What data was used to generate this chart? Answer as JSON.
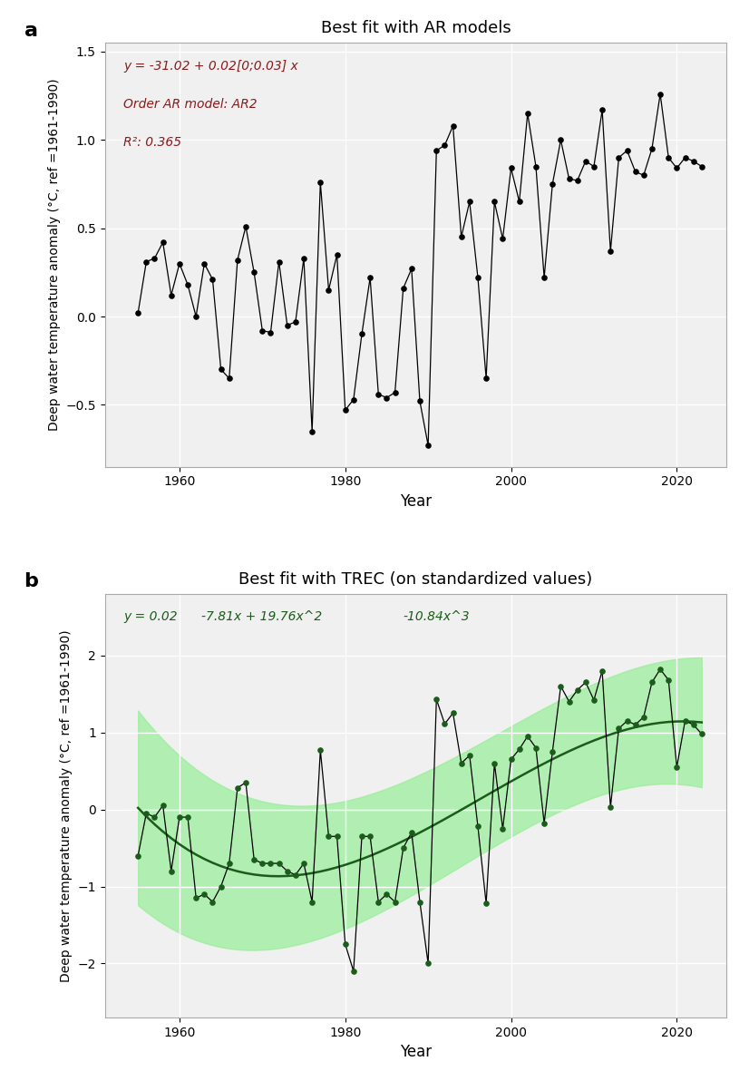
{
  "title_a": "Best fit with AR models",
  "title_b": "Best fit with TREC (on standardized values)",
  "xlabel": "Year",
  "ylabel": "Deep water temperature anomaly (°C, ref =1961-1990)",
  "label_a": "a",
  "label_b": "b",
  "years": [
    1955,
    1956,
    1957,
    1958,
    1959,
    1960,
    1961,
    1962,
    1963,
    1964,
    1965,
    1966,
    1967,
    1968,
    1969,
    1970,
    1971,
    1972,
    1973,
    1974,
    1975,
    1976,
    1977,
    1978,
    1979,
    1980,
    1981,
    1982,
    1983,
    1984,
    1985,
    1986,
    1987,
    1988,
    1989,
    1990,
    1991,
    1992,
    1993,
    1994,
    1995,
    1996,
    1997,
    1998,
    1999,
    2000,
    2001,
    2002,
    2003,
    2004,
    2005,
    2006,
    2007,
    2008,
    2009,
    2010,
    2011,
    2012,
    2013,
    2014,
    2015,
    2016,
    2017,
    2018,
    2019,
    2020,
    2021,
    2022,
    2023
  ],
  "values_a": [
    0.02,
    0.31,
    0.33,
    0.42,
    0.12,
    0.3,
    0.18,
    0.0,
    0.3,
    0.21,
    -0.3,
    -0.35,
    0.32,
    0.51,
    0.25,
    -0.08,
    -0.09,
    0.31,
    -0.05,
    -0.03,
    0.33,
    -0.65,
    0.76,
    0.15,
    0.35,
    -0.53,
    -0.47,
    -0.1,
    0.22,
    -0.44,
    -0.46,
    -0.43,
    0.16,
    0.27,
    -0.48,
    -0.73,
    0.94,
    0.97,
    1.08,
    0.45,
    0.65,
    0.22,
    -0.35,
    0.65,
    0.44,
    0.84,
    0.65,
    1.15,
    0.85,
    0.22,
    0.75,
    1.0,
    0.78,
    0.77,
    0.88,
    0.85,
    1.17,
    0.37,
    0.9,
    0.94,
    0.82,
    0.8,
    0.95,
    1.26,
    0.9,
    0.84,
    0.9,
    0.88,
    0.85
  ],
  "values_b": [
    -0.6,
    -0.05,
    -0.1,
    0.05,
    -0.8,
    -0.1,
    -0.1,
    -1.15,
    -1.1,
    -1.2,
    -1.0,
    -0.7,
    0.28,
    0.35,
    -0.65,
    -0.7,
    -0.7,
    -0.7,
    -0.8,
    -0.85,
    -0.7,
    -1.2,
    0.77,
    -0.35,
    -0.35,
    -1.75,
    -2.1,
    -0.35,
    -0.35,
    -1.2,
    -1.1,
    -1.2,
    -0.5,
    -0.3,
    -1.2,
    -2.0,
    1.43,
    1.11,
    1.25,
    0.6,
    0.7,
    -0.22,
    -1.22,
    0.6,
    -0.25,
    0.65,
    0.78,
    0.95,
    0.8,
    -0.18,
    0.75,
    1.6,
    1.4,
    1.55,
    1.65,
    1.42,
    1.8,
    0.03,
    1.05,
    1.15,
    1.1,
    1.2,
    1.65,
    1.82,
    1.68,
    0.55,
    1.15,
    1.1,
    0.98
  ],
  "ar_intercept": -31.02,
  "ar_slope": 0.02,
  "ar_text": "y = -31.02 + 0.02[0;0.03] x",
  "ar_order_text": "Order AR model: AR2",
  "ar_r2_text": "R²: 0.365",
  "trec_c0": 0.02,
  "trec_c1": -7.81,
  "trec_c2": 19.76,
  "trec_c3": -10.84,
  "red_color": "#8B1A1A",
  "red_fill": "#F4AEAE",
  "green_color": "#1A5C1A",
  "green_fill": "#90EE90",
  "ylim_a": [
    -0.85,
    1.55
  ],
  "ylim_b": [
    -2.7,
    2.8
  ],
  "background_color": "#F0F0F0",
  "grid_color": "white"
}
